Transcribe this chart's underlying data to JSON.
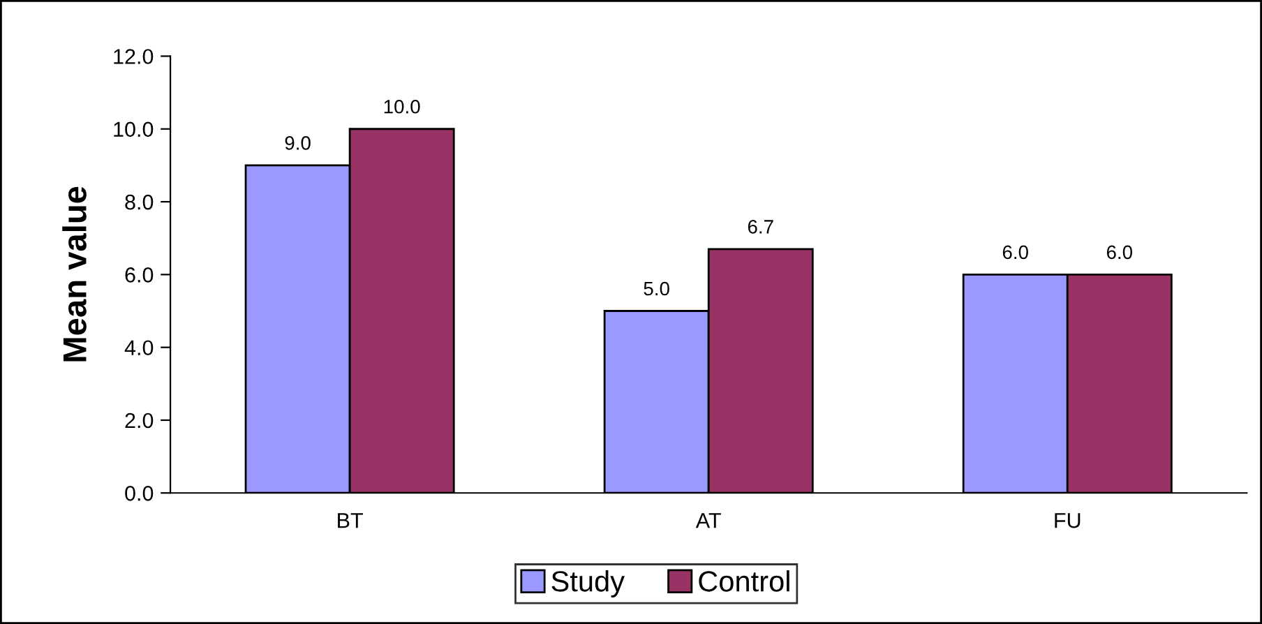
{
  "chart_data": {
    "type": "bar",
    "ylabel": "Mean value",
    "categories": [
      "BT",
      "AT",
      "FU"
    ],
    "series": [
      {
        "name": "Study",
        "color": "#9999ff",
        "values": [
          9.0,
          5.0,
          6.0
        ],
        "value_labels": [
          "9.0",
          "5.0",
          "6.0"
        ]
      },
      {
        "name": "Control",
        "color": "#993366",
        "values": [
          10.0,
          6.7,
          6.0
        ],
        "value_labels": [
          "10.0",
          "6.7",
          "6.0"
        ]
      }
    ],
    "ylim": [
      0,
      12
    ],
    "yticks": [
      {
        "value": 0,
        "label": "0.0"
      },
      {
        "value": 2,
        "label": "2.0"
      },
      {
        "value": 4,
        "label": "4.0"
      },
      {
        "value": 6,
        "label": "6.0"
      },
      {
        "value": 8,
        "label": "8.0"
      },
      {
        "value": 10,
        "label": "10.0"
      },
      {
        "value": 12,
        "label": "12.0"
      }
    ],
    "grid": false,
    "legend": "bottom"
  }
}
